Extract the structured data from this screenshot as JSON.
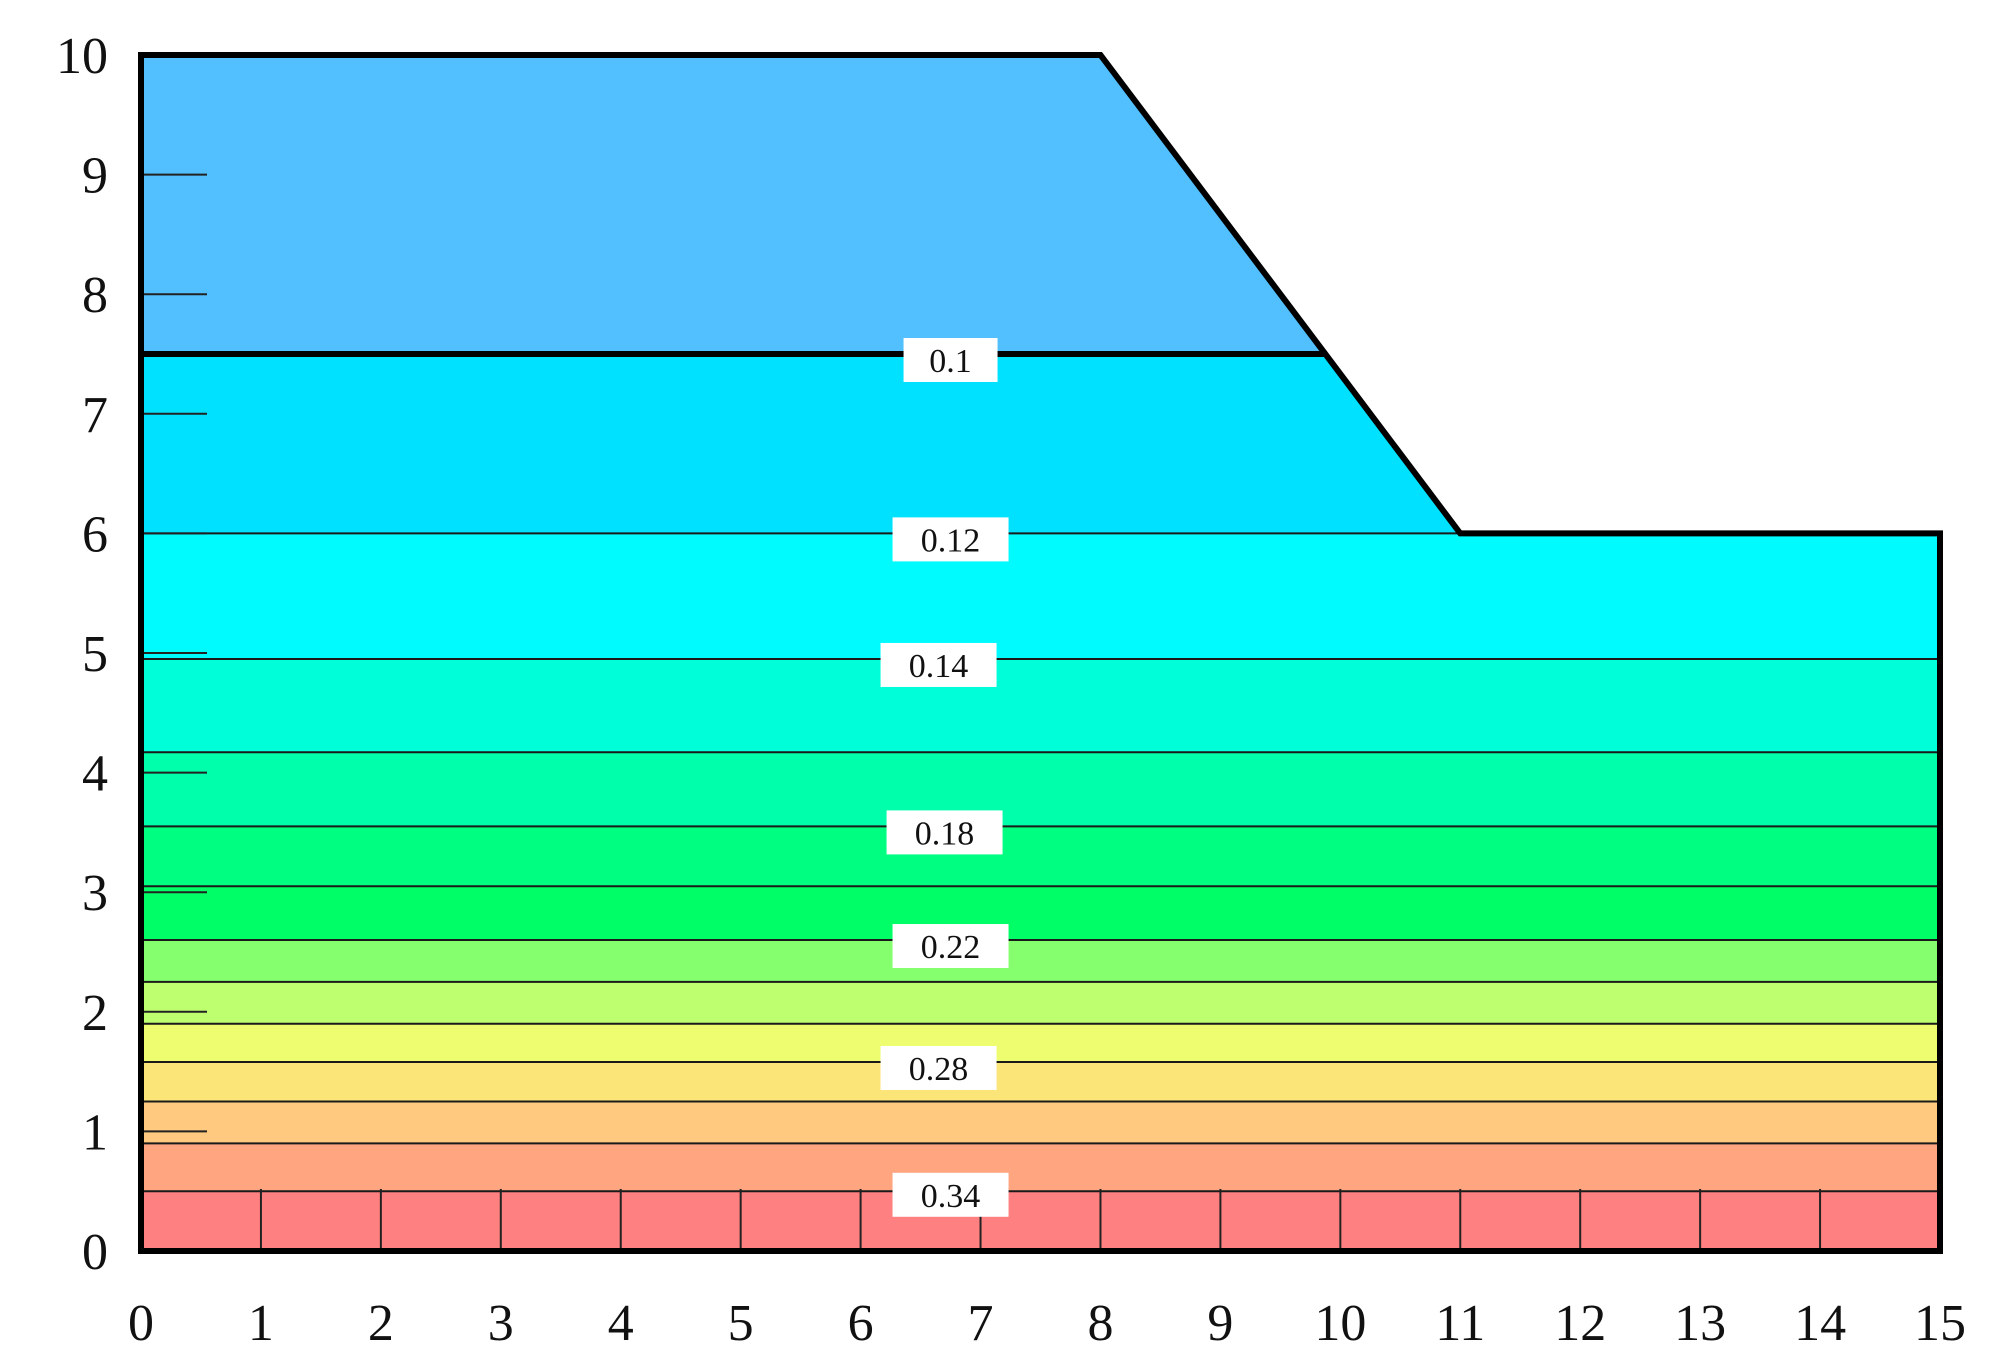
{
  "chart_data": {
    "type": "heatmap",
    "title": "",
    "xlabel": "",
    "ylabel": "",
    "xlim": [
      0,
      15
    ],
    "ylim": [
      0,
      10
    ],
    "x_ticks": [
      "0",
      "1",
      "2",
      "3",
      "4",
      "5",
      "6",
      "7",
      "8",
      "9",
      "10",
      "11",
      "12",
      "13",
      "14",
      "15"
    ],
    "y_ticks": [
      "0",
      "1",
      "2",
      "3",
      "4",
      "5",
      "6",
      "7",
      "8",
      "9",
      "10"
    ],
    "boundary": [
      [
        0,
        0
      ],
      [
        15,
        0
      ],
      [
        15,
        6
      ],
      [
        11,
        6
      ],
      [
        8,
        10
      ],
      [
        0,
        10
      ]
    ],
    "layer_interface_y": 7.5,
    "bands": [
      {
        "y0": 7.5,
        "y1": 10.0,
        "color": "#52bfff"
      },
      {
        "y0": 6.0,
        "y1": 7.5,
        "color": "#00e1ff"
      },
      {
        "y0": 4.95,
        "y1": 6.0,
        "color": "#00fbff"
      },
      {
        "y0": 4.17,
        "y1": 4.95,
        "color": "#00ffd9"
      },
      {
        "y0": 3.55,
        "y1": 4.17,
        "color": "#00ffaa"
      },
      {
        "y0": 3.05,
        "y1": 3.55,
        "color": "#00ff80"
      },
      {
        "y0": 2.6,
        "y1": 3.05,
        "color": "#00ff66"
      },
      {
        "y0": 2.25,
        "y1": 2.6,
        "color": "#86ff6e"
      },
      {
        "y0": 1.9,
        "y1": 2.25,
        "color": "#bdff6e"
      },
      {
        "y0": 1.58,
        "y1": 1.9,
        "color": "#eefc70"
      },
      {
        "y0": 1.25,
        "y1": 1.58,
        "color": "#fce578"
      },
      {
        "y0": 0.9,
        "y1": 1.25,
        "color": "#ffca80"
      },
      {
        "y0": 0.5,
        "y1": 0.9,
        "color": "#ffa580"
      },
      {
        "y0": 0.0,
        "y1": 0.5,
        "color": "#ff8080"
      }
    ],
    "contour_lines_y": [
      6.0,
      4.95,
      4.17,
      3.55,
      3.05,
      2.6,
      2.25,
      1.9,
      1.58,
      1.25,
      0.9,
      0.5
    ],
    "contour_labels": [
      {
        "text": "0.1",
        "x": 6.75,
        "y": 7.45
      },
      {
        "text": "0.12",
        "x": 6.75,
        "y": 5.95
      },
      {
        "text": "0.14",
        "x": 6.65,
        "y": 4.9
      },
      {
        "text": "0.18",
        "x": 6.7,
        "y": 3.5
      },
      {
        "text": "0.22",
        "x": 6.75,
        "y": 2.55
      },
      {
        "text": "0.28",
        "x": 6.65,
        "y": 1.53
      },
      {
        "text": "0.34",
        "x": 6.75,
        "y": 0.47
      }
    ]
  }
}
